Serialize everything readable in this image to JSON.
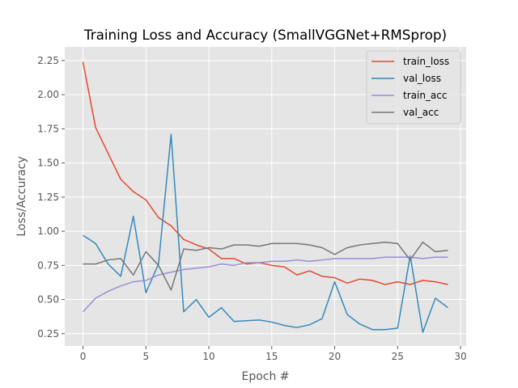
{
  "chart_data": {
    "type": "line",
    "title": "Training Loss and Accuracy (SmallVGGNet+RMSprop)",
    "xlabel": "Epoch #",
    "ylabel": "Loss/Accuracy",
    "xlim": [
      -1.45,
      30.45
    ],
    "ylim": [
      0.16,
      2.35
    ],
    "xticks": [
      "0",
      "5",
      "10",
      "15",
      "20",
      "25",
      "30"
    ],
    "yticks": [
      "0.25",
      "0.50",
      "0.75",
      "1.00",
      "1.25",
      "1.50",
      "1.75",
      "2.00",
      "2.25"
    ],
    "grid": true,
    "legend_position": "top-right",
    "x": [
      0,
      1,
      2,
      3,
      4,
      5,
      6,
      7,
      8,
      9,
      10,
      11,
      12,
      13,
      14,
      15,
      16,
      17,
      18,
      19,
      20,
      21,
      22,
      23,
      24,
      25,
      26,
      27,
      28,
      29
    ],
    "series": [
      {
        "name": "train_loss",
        "color": "#E24A33",
        "values": [
          2.24,
          1.76,
          1.57,
          1.38,
          1.29,
          1.23,
          1.1,
          1.04,
          0.94,
          0.9,
          0.87,
          0.8,
          0.8,
          0.76,
          0.77,
          0.75,
          0.74,
          0.68,
          0.71,
          0.67,
          0.66,
          0.62,
          0.65,
          0.64,
          0.61,
          0.63,
          0.61,
          0.64,
          0.63,
          0.61
        ]
      },
      {
        "name": "val_loss",
        "color": "#348ABD",
        "values": [
          0.97,
          0.91,
          0.76,
          0.67,
          1.11,
          0.55,
          0.76,
          1.71,
          0.41,
          0.5,
          0.37,
          0.44,
          0.34,
          0.345,
          0.35,
          0.335,
          0.31,
          0.295,
          0.315,
          0.36,
          0.63,
          0.39,
          0.32,
          0.28,
          0.28,
          0.29,
          0.82,
          0.26,
          0.51,
          0.44
        ]
      },
      {
        "name": "train_acc",
        "color": "#988ED5",
        "values": [
          0.41,
          0.51,
          0.56,
          0.6,
          0.63,
          0.64,
          0.68,
          0.7,
          0.72,
          0.73,
          0.74,
          0.76,
          0.75,
          0.77,
          0.77,
          0.78,
          0.78,
          0.79,
          0.78,
          0.79,
          0.8,
          0.8,
          0.8,
          0.8,
          0.81,
          0.81,
          0.81,
          0.8,
          0.81,
          0.81
        ]
      },
      {
        "name": "val_acc",
        "color": "#777777",
        "values": [
          0.76,
          0.76,
          0.79,
          0.8,
          0.68,
          0.85,
          0.75,
          0.57,
          0.87,
          0.86,
          0.88,
          0.87,
          0.9,
          0.9,
          0.89,
          0.91,
          0.91,
          0.91,
          0.9,
          0.88,
          0.83,
          0.88,
          0.9,
          0.91,
          0.92,
          0.91,
          0.79,
          0.92,
          0.85,
          0.86
        ]
      }
    ]
  },
  "colors": {
    "plot_background": "#E5E5E5",
    "grid": "#FFFFFF",
    "legend_background": "#E5E5E5"
  }
}
